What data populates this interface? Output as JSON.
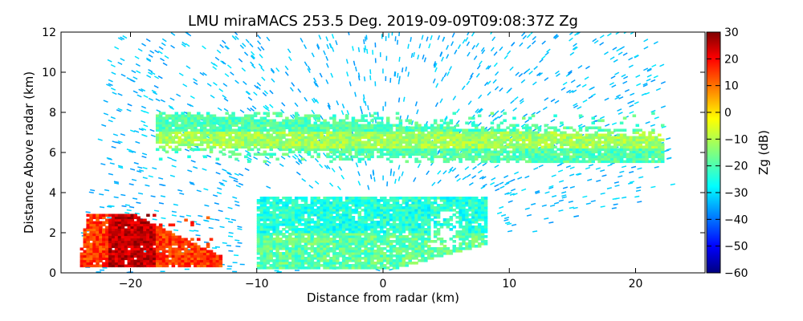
{
  "chart_data": {
    "type": "heatmap",
    "title": "LMU miraMACS 253.5 Deg. 2019-09-09T09:08:37Z  Zg",
    "xlabel": "Distance from radar (km)",
    "ylabel": "Distance Above radar  (km)",
    "xlim": [
      -25.5,
      25.5
    ],
    "ylim": [
      0,
      12
    ],
    "xticks": [
      -20,
      -10,
      0,
      10,
      20
    ],
    "yticks": [
      0,
      2,
      4,
      6,
      8,
      10,
      12
    ],
    "colorbar": {
      "label": "Zg (dB)",
      "range": [
        -60,
        30
      ],
      "ticks": [
        30,
        20,
        10,
        0,
        -10,
        -20,
        -30,
        -40,
        -50,
        -60
      ],
      "colormap": "jet"
    },
    "features": [
      {
        "name": "upper cloud layer",
        "x_range": [
          -18,
          22
        ],
        "y_range": [
          5.5,
          8.0
        ],
        "zg_dB": -15
      },
      {
        "name": "lower cloud layer",
        "x_range": [
          -10,
          8
        ],
        "y_range": [
          0.2,
          3.8
        ],
        "zg_dB": -20
      },
      {
        "name": "strong return near ground",
        "x_range": [
          -24,
          -13
        ],
        "y_range": [
          0.3,
          2.9
        ],
        "zg_dB": 18
      }
    ]
  }
}
